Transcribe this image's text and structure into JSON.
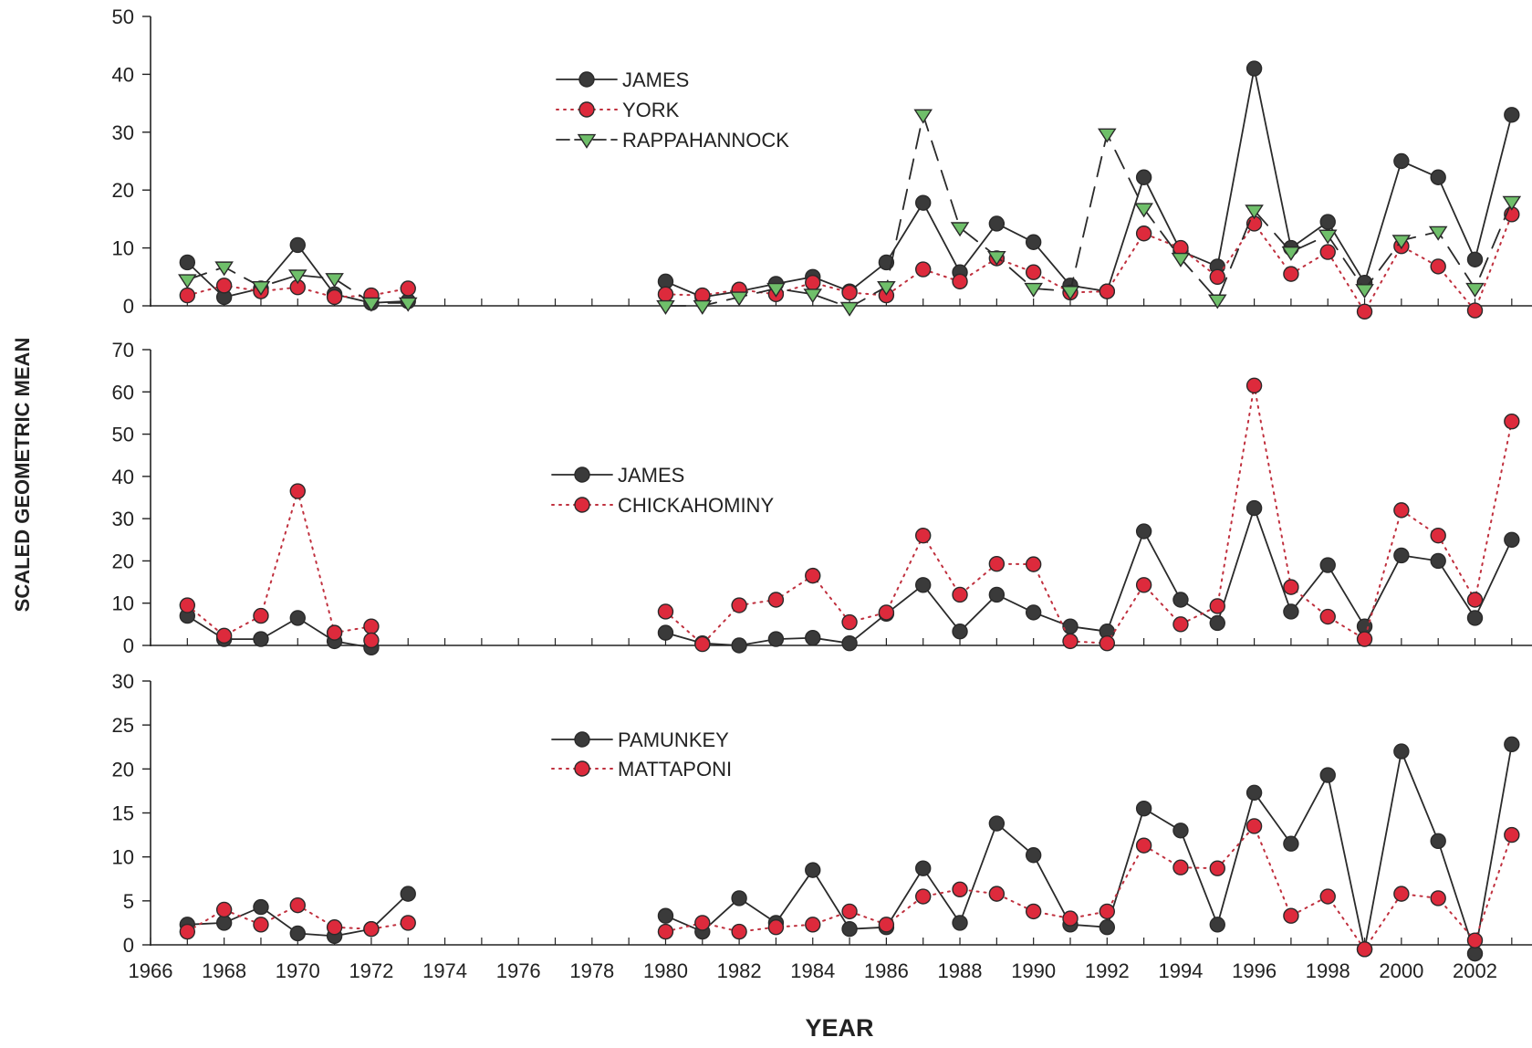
{
  "figure": {
    "xlabel": "YEAR",
    "ylabel": "SCALED GEOMETRIC MEAN"
  },
  "colors": {
    "dark": "#3a3a3a",
    "red": "#dd2a3c",
    "green": "#6fbf6a",
    "axis": "#222222"
  },
  "chart_data": [
    {
      "type": "line",
      "title": "",
      "xlabel": "",
      "ylabel": "",
      "xlim": [
        1966,
        2003
      ],
      "ylim": [
        0,
        50
      ],
      "yticks": [
        0,
        10,
        20,
        30,
        40,
        50
      ],
      "xticks": [],
      "legend": "upper-middle",
      "series": [
        {
          "name": "JAMES",
          "style": "solid",
          "marker": "circle",
          "color": "#3a3a3a",
          "points": [
            [
              1967,
              7.5
            ],
            [
              1968,
              1.5
            ],
            [
              1969,
              3
            ],
            [
              1970,
              10.5
            ],
            [
              1971,
              2
            ],
            [
              1972,
              0.5
            ],
            [
              1973,
              0.8
            ],
            [
              1980,
              4.2
            ],
            [
              1981,
              1.5
            ],
            [
              1982,
              2.5
            ],
            [
              1983,
              3.8
            ],
            [
              1984,
              5
            ],
            [
              1985,
              2.5
            ],
            [
              1986,
              7.5
            ],
            [
              1987,
              17.8
            ],
            [
              1988,
              5.8
            ],
            [
              1989,
              14.2
            ],
            [
              1990,
              11
            ],
            [
              1991,
              3.5
            ],
            [
              1992,
              2.5
            ],
            [
              1993,
              22.2
            ],
            [
              1994,
              9.5
            ],
            [
              1995,
              6.8
            ],
            [
              1996,
              41
            ],
            [
              1997,
              10
            ],
            [
              1998,
              14.5
            ],
            [
              1999,
              4
            ],
            [
              2000,
              25
            ],
            [
              2001,
              22.2
            ],
            [
              2002,
              8
            ],
            [
              2003,
              33
            ]
          ]
        },
        {
          "name": "YORK",
          "style": "dotted",
          "marker": "circle",
          "color": "#dd2a3c",
          "points": [
            [
              1967,
              1.8
            ],
            [
              1968,
              3.5
            ],
            [
              1969,
              2.5
            ],
            [
              1970,
              3.2
            ],
            [
              1971,
              1.5
            ],
            [
              1972,
              1.8
            ],
            [
              1973,
              3
            ],
            [
              1980,
              2
            ],
            [
              1981,
              1.8
            ],
            [
              1982,
              2.8
            ],
            [
              1983,
              2
            ],
            [
              1984,
              4
            ],
            [
              1985,
              2.3
            ],
            [
              1986,
              1.8
            ],
            [
              1987,
              6.3
            ],
            [
              1988,
              4.2
            ],
            [
              1989,
              8.2
            ],
            [
              1990,
              5.8
            ],
            [
              1991,
              2.3
            ],
            [
              1992,
              2.5
            ],
            [
              1993,
              12.5
            ],
            [
              1994,
              10
            ],
            [
              1995,
              5
            ],
            [
              1996,
              14.2
            ],
            [
              1997,
              5.5
            ],
            [
              1998,
              9.3
            ],
            [
              1999,
              -1
            ],
            [
              2000,
              10.3
            ],
            [
              2001,
              6.8
            ],
            [
              2002,
              -0.8
            ],
            [
              2003,
              15.8
            ]
          ]
        },
        {
          "name": "RAPPAHANNOCK",
          "style": "dashed",
          "marker": "triangle-down",
          "color": "#6fbf6a",
          "points": [
            [
              1967,
              4.5
            ],
            [
              1968,
              6.7
            ],
            [
              1969,
              3.3
            ],
            [
              1970,
              5.3
            ],
            [
              1971,
              4.7
            ],
            [
              1972,
              0.5
            ],
            [
              1973,
              0.5
            ],
            [
              1980,
              0
            ],
            [
              1981,
              0
            ],
            [
              1982,
              1.5
            ],
            [
              1983,
              3
            ],
            [
              1984,
              2
            ],
            [
              1985,
              -0.3
            ],
            [
              1986,
              3.3
            ],
            [
              1987,
              33
            ],
            [
              1988,
              13.5
            ],
            [
              1989,
              8.5
            ],
            [
              1990,
              3
            ],
            [
              1991,
              2.5
            ],
            [
              1992,
              29.7
            ],
            [
              1993,
              16.8
            ],
            [
              1994,
              8.2
            ],
            [
              1995,
              1
            ],
            [
              1996,
              16.5
            ],
            [
              1997,
              9.3
            ],
            [
              1998,
              12.2
            ],
            [
              1999,
              2.8
            ],
            [
              2000,
              11.3
            ],
            [
              2001,
              12.8
            ],
            [
              2002,
              3
            ],
            [
              2003,
              18
            ]
          ]
        }
      ]
    },
    {
      "type": "line",
      "title": "",
      "xlabel": "",
      "ylabel": "",
      "xlim": [
        1966,
        2003
      ],
      "ylim": [
        0,
        70
      ],
      "yticks": [
        0,
        10,
        20,
        30,
        40,
        50,
        60,
        70
      ],
      "xticks": [],
      "legend": "middle",
      "series": [
        {
          "name": "JAMES",
          "style": "solid",
          "marker": "circle",
          "color": "#3a3a3a",
          "points": [
            [
              1967,
              7
            ],
            [
              1968,
              1.5
            ],
            [
              1969,
              1.5
            ],
            [
              1970,
              6.5
            ],
            [
              1971,
              1
            ],
            [
              1972,
              -0.5
            ],
            [
              1980,
              3
            ],
            [
              1981,
              0.5
            ],
            [
              1982,
              0
            ],
            [
              1983,
              1.5
            ],
            [
              1984,
              1.8
            ],
            [
              1985,
              0.5
            ],
            [
              1986,
              7.5
            ],
            [
              1987,
              14.3
            ],
            [
              1988,
              3.3
            ],
            [
              1989,
              12
            ],
            [
              1990,
              7.8
            ],
            [
              1991,
              4.5
            ],
            [
              1992,
              3.3
            ],
            [
              1993,
              27
            ],
            [
              1994,
              10.8
            ],
            [
              1995,
              5.3
            ],
            [
              1996,
              32.5
            ],
            [
              1997,
              8
            ],
            [
              1998,
              19
            ],
            [
              1999,
              4.5
            ],
            [
              2000,
              21.3
            ],
            [
              2001,
              20
            ],
            [
              2002,
              6.5
            ],
            [
              2003,
              25
            ]
          ]
        },
        {
          "name": "CHICKAHOMINY",
          "style": "dotted",
          "marker": "circle",
          "color": "#dd2a3c",
          "points": [
            [
              1967,
              9.5
            ],
            [
              1968,
              2.3
            ],
            [
              1969,
              7
            ],
            [
              1970,
              36.5
            ],
            [
              1971,
              3
            ],
            [
              1972,
              4.5
            ],
            [
              1972,
              1.2
            ],
            [
              1980,
              8
            ],
            [
              1981,
              0.3
            ],
            [
              1982,
              9.5
            ],
            [
              1983,
              10.8
            ],
            [
              1984,
              16.5
            ],
            [
              1985,
              5.5
            ],
            [
              1986,
              7.8
            ],
            [
              1987,
              26
            ],
            [
              1988,
              12
            ],
            [
              1989,
              19.3
            ],
            [
              1990,
              19.2
            ],
            [
              1991,
              1
            ],
            [
              1992,
              0.5
            ],
            [
              1993,
              14.3
            ],
            [
              1994,
              5
            ],
            [
              1995,
              9.3
            ],
            [
              1996,
              61.5
            ],
            [
              1997,
              13.8
            ],
            [
              1998,
              6.8
            ],
            [
              1999,
              1.5
            ],
            [
              2000,
              32
            ],
            [
              2001,
              26
            ],
            [
              2002,
              10.8
            ],
            [
              2003,
              53
            ]
          ]
        }
      ]
    },
    {
      "type": "line",
      "title": "",
      "xlabel": "YEAR",
      "ylabel": "",
      "xlim": [
        1966,
        2003
      ],
      "ylim": [
        0,
        30
      ],
      "yticks": [
        0,
        5,
        10,
        15,
        20,
        25,
        30
      ],
      "xticks": [
        1966,
        1968,
        1970,
        1972,
        1974,
        1976,
        1978,
        1980,
        1982,
        1984,
        1986,
        1988,
        1990,
        1992,
        1994,
        1996,
        1998,
        2000,
        2002
      ],
      "legend": "upper-middle",
      "series": [
        {
          "name": "PAMUNKEY",
          "style": "solid",
          "marker": "circle",
          "color": "#3a3a3a",
          "points": [
            [
              1967,
              2.3
            ],
            [
              1968,
              2.5
            ],
            [
              1969,
              4.3
            ],
            [
              1970,
              1.3
            ],
            [
              1971,
              1
            ],
            [
              1972,
              1.8
            ],
            [
              1973,
              5.8
            ],
            [
              1980,
              3.3
            ],
            [
              1981,
              1.5
            ],
            [
              1982,
              5.3
            ],
            [
              1983,
              2.5
            ],
            [
              1984,
              8.5
            ],
            [
              1985,
              1.8
            ],
            [
              1986,
              2
            ],
            [
              1987,
              8.7
            ],
            [
              1988,
              2.5
            ],
            [
              1989,
              13.8
            ],
            [
              1990,
              10.2
            ],
            [
              1991,
              2.3
            ],
            [
              1992,
              2
            ],
            [
              1993,
              15.5
            ],
            [
              1994,
              13
            ],
            [
              1995,
              2.3
            ],
            [
              1996,
              17.3
            ],
            [
              1997,
              11.5
            ],
            [
              1998,
              19.3
            ],
            [
              1999,
              -0.5
            ],
            [
              2000,
              22
            ],
            [
              2001,
              11.8
            ],
            [
              2002,
              -1
            ],
            [
              2003,
              22.8
            ]
          ]
        },
        {
          "name": "MATTAPONI",
          "style": "dotted",
          "marker": "circle",
          "color": "#dd2a3c",
          "points": [
            [
              1967,
              1.5
            ],
            [
              1968,
              4
            ],
            [
              1969,
              2.3
            ],
            [
              1970,
              4.5
            ],
            [
              1971,
              2
            ],
            [
              1972,
              1.8
            ],
            [
              1973,
              2.5
            ],
            [
              1980,
              1.5
            ],
            [
              1981,
              2.5
            ],
            [
              1982,
              1.5
            ],
            [
              1983,
              2
            ],
            [
              1984,
              2.3
            ],
            [
              1985,
              3.8
            ],
            [
              1986,
              2.3
            ],
            [
              1987,
              5.5
            ],
            [
              1988,
              6.3
            ],
            [
              1989,
              5.8
            ],
            [
              1990,
              3.8
            ],
            [
              1991,
              3
            ],
            [
              1992,
              3.8
            ],
            [
              1993,
              11.3
            ],
            [
              1994,
              8.8
            ],
            [
              1995,
              8.7
            ],
            [
              1996,
              13.5
            ],
            [
              1997,
              3.3
            ],
            [
              1998,
              5.5
            ],
            [
              1999,
              -0.5
            ],
            [
              2000,
              5.8
            ],
            [
              2001,
              5.3
            ],
            [
              2002,
              0.5
            ],
            [
              2003,
              12.5
            ]
          ]
        }
      ]
    }
  ]
}
